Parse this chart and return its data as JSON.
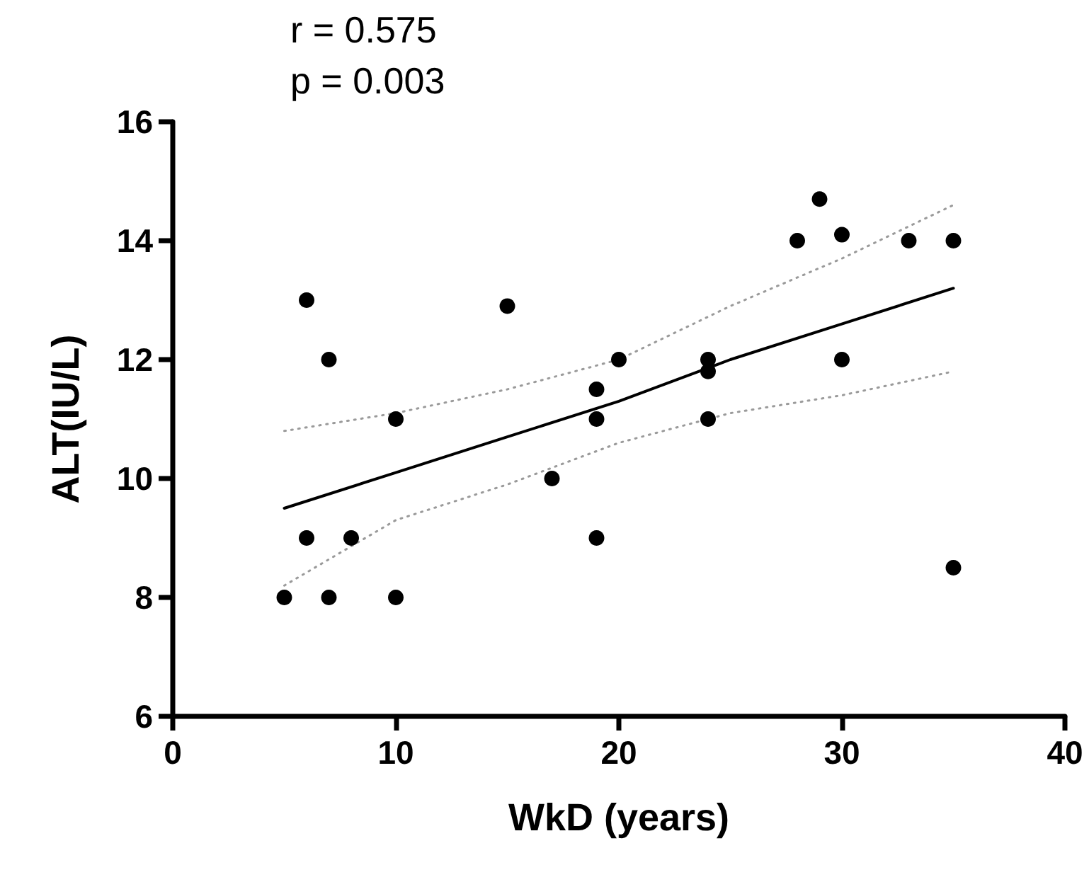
{
  "chart_data": {
    "type": "scatter",
    "xlabel": "WkD (years)",
    "ylabel": "ALT(IU/L)",
    "annotations": [
      "r = 0.575",
      "p = 0.003"
    ],
    "xlim": [
      0,
      40
    ],
    "xticks": [
      0,
      10,
      20,
      30,
      40
    ],
    "ylim": [
      6,
      16
    ],
    "yticks": [
      6,
      8,
      10,
      12,
      14,
      16
    ],
    "grid": false,
    "marker": "circle",
    "series": [
      {
        "color": "#000000",
        "x": [
          5,
          6,
          6,
          7,
          7,
          8,
          10,
          10,
          15,
          17,
          19,
          19,
          19,
          20,
          24,
          24,
          24,
          28,
          29,
          30,
          30,
          33,
          35,
          35
        ],
        "values": [
          8,
          13,
          9,
          12,
          8,
          9,
          11,
          8,
          12.9,
          10,
          11.5,
          11,
          9,
          12,
          12,
          11.8,
          11,
          14,
          14.7,
          14.1,
          12,
          14,
          14,
          8.5
        ]
      },
      {
        "type": "line",
        "color": "#000000",
        "marker": "none",
        "line_style": "solid",
        "x": [
          5,
          10,
          15,
          20,
          25,
          30,
          35
        ],
        "values": [
          9.5,
          10.1,
          10.7,
          11.3,
          12,
          12.6,
          13.2
        ]
      },
      {
        "type": "line",
        "color": "#9a9a9a",
        "marker": "none",
        "line_style": "dotted",
        "x": [
          5,
          10,
          15,
          20,
          25,
          30,
          35
        ],
        "values": [
          8.2,
          9.3,
          9.9,
          10.6,
          11.1,
          11.4,
          11.8
        ]
      },
      {
        "type": "line",
        "color": "#9a9a9a",
        "marker": "none",
        "line_style": "dotted",
        "x": [
          5,
          10,
          15,
          20,
          25,
          30,
          35
        ],
        "values": [
          10.8,
          11.1,
          11.5,
          12,
          12.9,
          13.7,
          14.6
        ]
      }
    ]
  }
}
